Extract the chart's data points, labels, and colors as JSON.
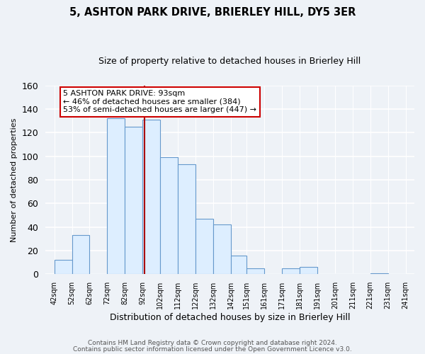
{
  "title": "5, ASHTON PARK DRIVE, BRIERLEY HILL, DY5 3ER",
  "subtitle": "Size of property relative to detached houses in Brierley Hill",
  "xlabel": "Distribution of detached houses by size in Brierley Hill",
  "ylabel": "Number of detached properties",
  "bar_lefts": [
    42,
    52,
    62,
    72,
    82,
    92,
    102,
    112,
    122,
    132,
    142,
    151,
    161,
    171,
    181,
    191,
    201,
    211,
    221,
    231
  ],
  "bar_rights": [
    52,
    62,
    72,
    82,
    92,
    102,
    112,
    122,
    132,
    142,
    151,
    161,
    171,
    181,
    191,
    201,
    211,
    221,
    231,
    241
  ],
  "bar_heights": [
    12,
    33,
    0,
    132,
    125,
    131,
    99,
    93,
    47,
    42,
    16,
    5,
    0,
    5,
    6,
    0,
    0,
    0,
    1,
    0
  ],
  "bar_fill_color": "#ddeeff",
  "bar_edge_color": "#6699cc",
  "property_line_x": 93,
  "property_line_color": "#aa0000",
  "annotation_text": "5 ASHTON PARK DRIVE: 93sqm\n← 46% of detached houses are smaller (384)\n53% of semi-detached houses are larger (447) →",
  "annotation_box_facecolor": "white",
  "annotation_box_edgecolor": "#cc0000",
  "ylim": [
    0,
    160
  ],
  "yticks": [
    0,
    20,
    40,
    60,
    80,
    100,
    120,
    140,
    160
  ],
  "tick_labels": [
    "42sqm",
    "52sqm",
    "62sqm",
    "72sqm",
    "82sqm",
    "92sqm",
    "102sqm",
    "112sqm",
    "122sqm",
    "132sqm",
    "142sqm",
    "151sqm",
    "161sqm",
    "171sqm",
    "181sqm",
    "191sqm",
    "201sqm",
    "211sqm",
    "221sqm",
    "231sqm",
    "241sqm"
  ],
  "tick_positions": [
    42,
    52,
    62,
    72,
    82,
    92,
    102,
    112,
    122,
    132,
    142,
    151,
    161,
    171,
    181,
    191,
    201,
    211,
    221,
    231,
    241
  ],
  "footer_line1": "Contains HM Land Registry data © Crown copyright and database right 2024.",
  "footer_line2": "Contains public sector information licensed under the Open Government Licence v3.0.",
  "background_color": "#eef2f7",
  "grid_color": "#ffffff",
  "title_fontsize": 10.5,
  "subtitle_fontsize": 9,
  "xlabel_fontsize": 9,
  "ylabel_fontsize": 8,
  "tick_fontsize": 7,
  "annotation_fontsize": 8,
  "footer_fontsize": 6.5,
  "ytick_fontsize": 9
}
